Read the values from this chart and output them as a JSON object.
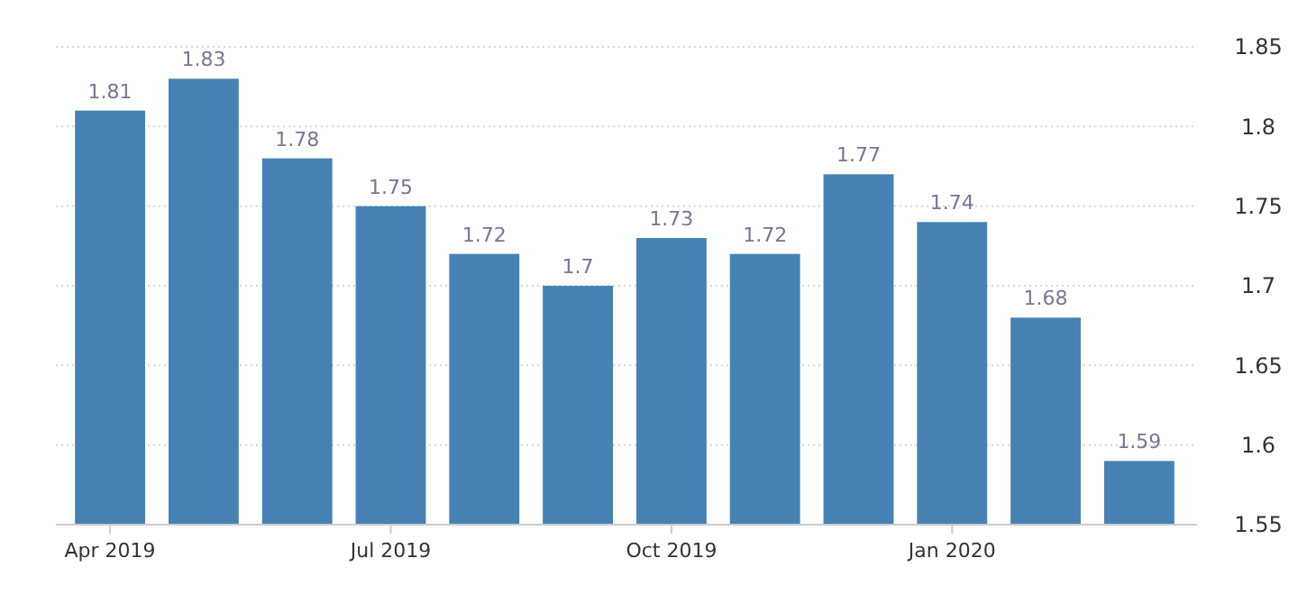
{
  "chart_data": {
    "type": "bar",
    "categories": [
      "Apr 2019",
      null,
      null,
      "Jul 2019",
      null,
      null,
      "Oct 2019",
      null,
      null,
      "Jan 2020",
      null,
      null
    ],
    "values": [
      1.81,
      1.83,
      1.78,
      1.75,
      1.72,
      1.7,
      1.73,
      1.72,
      1.77,
      1.74,
      1.68,
      1.59
    ],
    "color": "#4682b4",
    "ylim": [
      1.55,
      1.85
    ],
    "yticks": [
      1.55,
      1.6,
      1.65,
      1.7,
      1.75,
      1.8,
      1.85
    ],
    "grid": "y",
    "data_labels": true
  }
}
